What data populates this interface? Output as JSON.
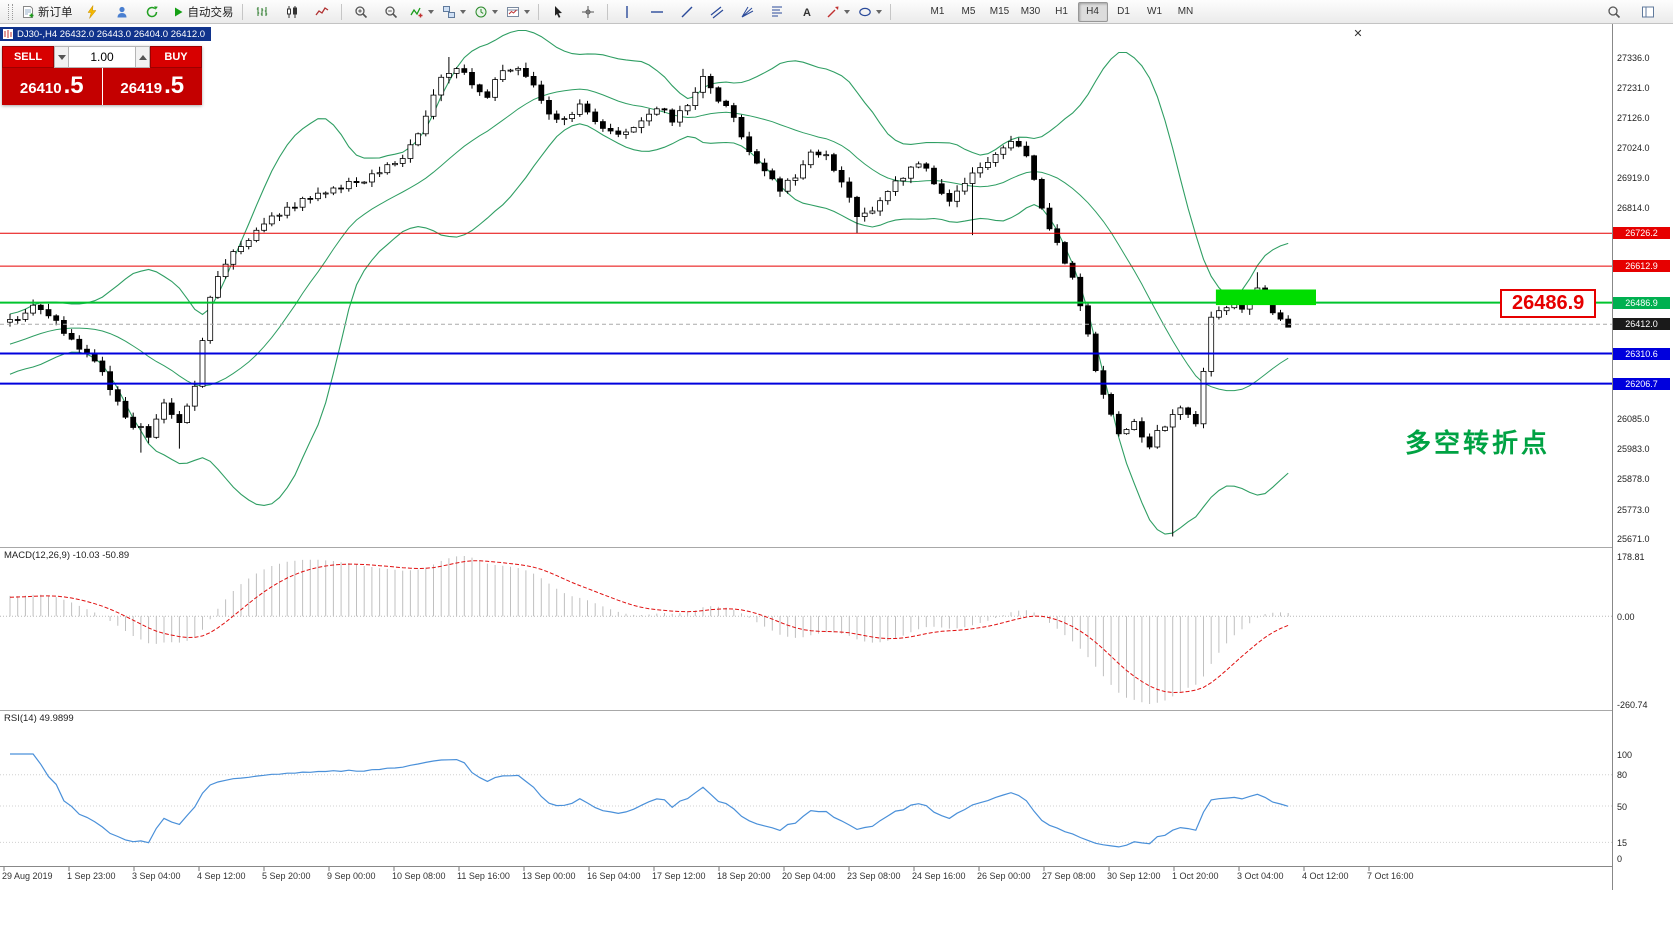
{
  "window": {
    "title_strip": "DJ30-,H4  26432.0 26443.0 26404.0 26412.0",
    "close_glyph": "✕"
  },
  "toolbar": {
    "new_order_label": "新订单",
    "autotrading_label": "自动交易",
    "timeframes": [
      "M1",
      "M5",
      "M15",
      "M30",
      "H1",
      "H4",
      "D1",
      "W1",
      "MN"
    ],
    "active_timeframe": "H4"
  },
  "trade_panel": {
    "sell_label": "SELL",
    "buy_label": "BUY",
    "volume": "1.00",
    "sell_price_int": "26410",
    "sell_price_frac": ".5",
    "buy_price_int": "26419",
    "buy_price_frac": ".5"
  },
  "annotations": {
    "pivot_callout": "26486.9",
    "turning_point": "多空转折点"
  },
  "price_axis": {
    "plain_labels": [
      {
        "label": "27336.0",
        "v": 27336.0
      },
      {
        "label": "27231.0",
        "v": 27231.0
      },
      {
        "label": "27126.0",
        "v": 27126.0
      },
      {
        "label": "27024.0",
        "v": 27024.0
      },
      {
        "label": "26919.0",
        "v": 26919.0
      },
      {
        "label": "26814.0",
        "v": 26814.0
      },
      {
        "label": "26085.0",
        "v": 26085.0
      },
      {
        "label": "25983.0",
        "v": 25983.0
      },
      {
        "label": "25878.0",
        "v": 25878.0
      },
      {
        "label": "25773.0",
        "v": 25773.0
      },
      {
        "label": "25671.0",
        "v": 25671.0
      }
    ],
    "badges": [
      {
        "label": "26726.2",
        "price": 26726.2,
        "bg": "#e60000"
      },
      {
        "label": "26612.9",
        "price": 26612.9,
        "bg": "#e60000"
      },
      {
        "label": "26486.9",
        "price": 26486.9,
        "bg": "#00b050"
      },
      {
        "label": "26412.0",
        "price": 26412.0,
        "bg": "#1a1a1a"
      },
      {
        "label": "26310.6",
        "price": 26310.6,
        "bg": "#0000dd"
      },
      {
        "label": "26206.7",
        "price": 26206.7,
        "bg": "#0000dd"
      }
    ]
  },
  "levels": [
    {
      "price": 26726.2,
      "color": "#e60000",
      "width": 1,
      "dashed": false
    },
    {
      "price": 26612.9,
      "color": "#e60000",
      "width": 1,
      "dashed": false
    },
    {
      "price": 26486.9,
      "color": "#00c42e",
      "width": 2,
      "dashed": false
    },
    {
      "price": 26412.0,
      "color": "#aaaaaa",
      "width": 1,
      "dashed": true
    },
    {
      "price": 26310.6,
      "color": "#0000dd",
      "width": 2,
      "dashed": false
    },
    {
      "price": 26206.7,
      "color": "#0000dd",
      "width": 2,
      "dashed": false
    }
  ],
  "highlight_rect": {
    "bar_from": 157,
    "bar_to": 170,
    "price_top": 26532,
    "price_bottom": 26478,
    "color": "#00dd00"
  },
  "time_axis": {
    "labels": [
      "29 Aug 2019",
      "1 Sep 23:00",
      "3 Sep 04:00",
      "4 Sep 12:00",
      "5 Sep 20:00",
      "9 Sep 00:00",
      "10 Sep 08:00",
      "11 Sep 16:00",
      "13 Sep 00:00",
      "16 Sep 04:00",
      "17 Sep 12:00",
      "18 Sep 20:00",
      "20 Sep 04:00",
      "23 Sep 08:00",
      "24 Sep 16:00",
      "26 Sep 00:00",
      "27 Sep 08:00",
      "30 Sep 12:00",
      "1 Oct 20:00",
      "3 Oct 04:00",
      "4 Oct 12:00",
      "7 Oct 16:00"
    ]
  },
  "macd_panel": {
    "label": "MACD(12,26,9) -10.03 -50.89",
    "axis": [
      {
        "label": "178.81",
        "v": 178.81
      },
      {
        "label": "0.00",
        "v": 0
      },
      {
        "label": "-260.74",
        "v": -260.74
      }
    ],
    "range": [
      -260.74,
      178.81
    ]
  },
  "rsi_panel": {
    "label": "RSI(14) 49.9899",
    "axis": [
      {
        "label": "100",
        "v": 100
      },
      {
        "label": "80",
        "v": 80
      },
      {
        "label": "50",
        "v": 50
      },
      {
        "label": "15",
        "v": 15
      },
      {
        "label": "0",
        "v": 0
      }
    ],
    "levels": [
      80,
      50,
      15
    ]
  },
  "chart_data": {
    "type": "candlestick",
    "symbol": "DJ30-",
    "timeframe": "H4",
    "current_ohlc": {
      "open": 26432.0,
      "high": 26443.0,
      "low": 26404.0,
      "close": 26412.0
    },
    "bid": 26410.5,
    "ask": 26419.5,
    "price_min": 25671.0,
    "price_max": 27336.0,
    "bars": 167,
    "noise": 14,
    "wick": 18,
    "close_anchors": [
      [
        0,
        26430
      ],
      [
        3,
        26465
      ],
      [
        6,
        26420
      ],
      [
        9,
        26330
      ],
      [
        12,
        26250
      ],
      [
        14,
        26140
      ],
      [
        16,
        26060
      ],
      [
        18,
        26030
      ],
      [
        20,
        26130
      ],
      [
        22,
        26060
      ],
      [
        24,
        26200
      ],
      [
        26,
        26500
      ],
      [
        28,
        26630
      ],
      [
        31,
        26710
      ],
      [
        34,
        26790
      ],
      [
        38,
        26840
      ],
      [
        42,
        26880
      ],
      [
        46,
        26910
      ],
      [
        49,
        26950
      ],
      [
        52,
        27020
      ],
      [
        54,
        27130
      ],
      [
        56,
        27270
      ],
      [
        58,
        27310
      ],
      [
        60,
        27240
      ],
      [
        62,
        27210
      ],
      [
        64,
        27280
      ],
      [
        66,
        27300
      ],
      [
        68,
        27250
      ],
      [
        70,
        27140
      ],
      [
        72,
        27120
      ],
      [
        74,
        27170
      ],
      [
        76,
        27110
      ],
      [
        78,
        27090
      ],
      [
        80,
        27070
      ],
      [
        82,
        27110
      ],
      [
        84,
        27170
      ],
      [
        86,
        27120
      ],
      [
        88,
        27180
      ],
      [
        90,
        27270
      ],
      [
        92,
        27170
      ],
      [
        94,
        27140
      ],
      [
        96,
        27000
      ],
      [
        98,
        26950
      ],
      [
        100,
        26880
      ],
      [
        102,
        26930
      ],
      [
        104,
        27000
      ],
      [
        106,
        26990
      ],
      [
        108,
        26900
      ],
      [
        110,
        26790
      ],
      [
        112,
        26810
      ],
      [
        114,
        26860
      ],
      [
        116,
        26930
      ],
      [
        118,
        26970
      ],
      [
        120,
        26910
      ],
      [
        122,
        26830
      ],
      [
        124,
        26900
      ],
      [
        126,
        26950
      ],
      [
        128,
        26990
      ],
      [
        130,
        27050
      ],
      [
        132,
        26990
      ],
      [
        134,
        26820
      ],
      [
        136,
        26690
      ],
      [
        138,
        26570
      ],
      [
        140,
        26370
      ],
      [
        142,
        26160
      ],
      [
        144,
        26020
      ],
      [
        146,
        26070
      ],
      [
        148,
        26000
      ],
      [
        150,
        26070
      ],
      [
        152,
        26120
      ],
      [
        154,
        26080
      ],
      [
        156,
        26440
      ],
      [
        158,
        26465
      ],
      [
        160,
        26470
      ],
      [
        162,
        26540
      ],
      [
        164,
        26455
      ],
      [
        166,
        26412
      ]
    ],
    "wick_overrides": [
      {
        "i": 17,
        "low": 25968
      },
      {
        "i": 22,
        "low": 25982
      },
      {
        "i": 57,
        "high": 27336
      },
      {
        "i": 90,
        "high": 27295
      },
      {
        "i": 110,
        "low": 26726
      },
      {
        "i": 125,
        "low": 26720
      },
      {
        "i": 151,
        "low": 25678
      },
      {
        "i": 162,
        "high": 26592
      },
      {
        "i": 166,
        "high": 26443,
        "low": 26404
      }
    ],
    "indicators": {
      "bollinger": {
        "period": 20,
        "deviation": 2,
        "color": "#2f9e63"
      },
      "macd": {
        "fast": 12,
        "slow": 26,
        "signal": 9,
        "histogram_color": "#c0c0c0",
        "signal_color": "#e01010"
      },
      "rsi": {
        "period": 14,
        "color": "#4a90d9"
      }
    }
  }
}
